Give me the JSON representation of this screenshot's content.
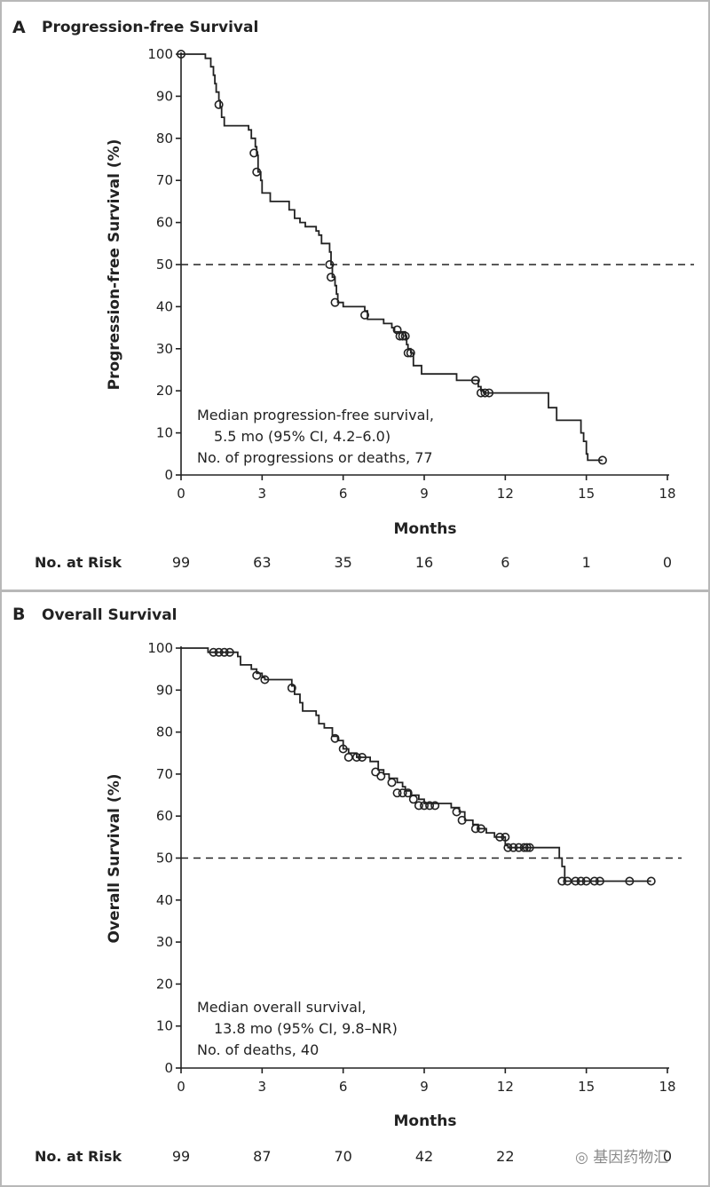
{
  "chart_data": [
    {
      "type": "line",
      "panel_letter": "A",
      "title": "Progression-free Survival",
      "xlabel": "Months",
      "ylabel": "Progression-free Survival (%)",
      "xlim": [
        0,
        18
      ],
      "ylim": [
        0,
        100
      ],
      "x_ticks": [
        0,
        3,
        6,
        9,
        12,
        15,
        18
      ],
      "y_ticks": [
        0,
        10,
        20,
        30,
        40,
        50,
        60,
        70,
        80,
        90,
        100
      ],
      "reference_line": 50,
      "annotation": [
        "Median progression-free survival,",
        "5.5 mo (95% CI, 4.2–6.0)",
        "No. of progressions or deaths, 77"
      ],
      "risk_label": "No. at Risk",
      "risk_times": [
        0,
        3,
        6,
        9,
        12,
        15,
        18
      ],
      "risk_counts": [
        "99",
        "63",
        "35",
        "16",
        "6",
        "1",
        "0"
      ],
      "series": [
        {
          "steps": [
            [
              0,
              100
            ],
            [
              0.9,
              99
            ],
            [
              1.1,
              97
            ],
            [
              1.2,
              95
            ],
            [
              1.25,
              93
            ],
            [
              1.3,
              91
            ],
            [
              1.4,
              89
            ],
            [
              1.45,
              87.5
            ],
            [
              1.5,
              85
            ],
            [
              1.6,
              83
            ],
            [
              2.5,
              82
            ],
            [
              2.6,
              80
            ],
            [
              2.75,
              78
            ],
            [
              2.8,
              76
            ],
            [
              2.85,
              72
            ],
            [
              2.95,
              70
            ],
            [
              3.0,
              67
            ],
            [
              3.3,
              65
            ],
            [
              4.0,
              63
            ],
            [
              4.2,
              61
            ],
            [
              4.4,
              60
            ],
            [
              4.6,
              59
            ],
            [
              5.0,
              58
            ],
            [
              5.1,
              57
            ],
            [
              5.2,
              55
            ],
            [
              5.5,
              53
            ],
            [
              5.55,
              50
            ],
            [
              5.6,
              47
            ],
            [
              5.7,
              45
            ],
            [
              5.75,
              43
            ],
            [
              5.8,
              41
            ],
            [
              6.0,
              40
            ],
            [
              6.8,
              39
            ],
            [
              6.9,
              37
            ],
            [
              7.5,
              36
            ],
            [
              7.8,
              35
            ],
            [
              7.9,
              34
            ],
            [
              8.3,
              33
            ],
            [
              8.35,
              31
            ],
            [
              8.4,
              30
            ],
            [
              8.5,
              29
            ],
            [
              8.6,
              26
            ],
            [
              8.9,
              24
            ],
            [
              10.2,
              22.5
            ],
            [
              11.0,
              21
            ],
            [
              11.1,
              20
            ],
            [
              11.2,
              19.5
            ],
            [
              13.6,
              16
            ],
            [
              13.9,
              13
            ],
            [
              14.8,
              10
            ],
            [
              14.9,
              8
            ],
            [
              15.0,
              5
            ],
            [
              15.05,
              3.5
            ],
            [
              15.6,
              3.5
            ]
          ],
          "censored": [
            [
              0,
              100
            ],
            [
              1.4,
              88
            ],
            [
              2.7,
              76.5
            ],
            [
              2.8,
              72
            ],
            [
              5.5,
              50
            ],
            [
              5.55,
              47
            ],
            [
              5.7,
              41
            ],
            [
              6.8,
              38
            ],
            [
              8.0,
              34.5
            ],
            [
              8.1,
              33
            ],
            [
              8.2,
              33
            ],
            [
              8.3,
              33
            ],
            [
              8.4,
              29
            ],
            [
              8.5,
              29
            ],
            [
              10.9,
              22.5
            ],
            [
              11.1,
              19.5
            ],
            [
              11.25,
              19.5
            ],
            [
              11.4,
              19.5
            ],
            [
              15.6,
              3.5
            ]
          ]
        }
      ]
    },
    {
      "type": "line",
      "panel_letter": "B",
      "title": "Overall Survival",
      "xlabel": "Months",
      "ylabel": "Overall Survival (%)",
      "xlim": [
        0,
        18
      ],
      "ylim": [
        0,
        100
      ],
      "x_ticks": [
        0,
        3,
        6,
        9,
        12,
        15,
        18
      ],
      "y_ticks": [
        0,
        10,
        20,
        30,
        40,
        50,
        60,
        70,
        80,
        90,
        100
      ],
      "reference_line": 50,
      "annotation": [
        "Median overall survival,",
        "13.8 mo (95% CI, 9.8–NR)",
        "No. of deaths, 40"
      ],
      "risk_label": "No. at Risk",
      "risk_times": [
        0,
        3,
        6,
        9,
        12,
        15,
        18
      ],
      "risk_counts": [
        "99",
        "87",
        "70",
        "42",
        "22",
        "",
        "0"
      ],
      "series": [
        {
          "steps": [
            [
              0,
              100
            ],
            [
              1.0,
              99
            ],
            [
              2.1,
              98
            ],
            [
              2.2,
              96
            ],
            [
              2.6,
              95
            ],
            [
              2.8,
              94
            ],
            [
              3.0,
              93
            ],
            [
              3.1,
              92.5
            ],
            [
              4.1,
              91
            ],
            [
              4.2,
              89
            ],
            [
              4.4,
              87
            ],
            [
              4.5,
              85
            ],
            [
              5.0,
              84
            ],
            [
              5.1,
              82
            ],
            [
              5.3,
              81
            ],
            [
              5.6,
              79
            ],
            [
              5.8,
              78
            ],
            [
              6.0,
              76
            ],
            [
              6.2,
              75
            ],
            [
              6.5,
              74
            ],
            [
              7.0,
              73
            ],
            [
              7.3,
              71
            ],
            [
              7.5,
              70
            ],
            [
              7.7,
              69
            ],
            [
              8.0,
              68
            ],
            [
              8.2,
              67
            ],
            [
              8.3,
              66
            ],
            [
              8.5,
              65
            ],
            [
              8.8,
              64
            ],
            [
              9.0,
              63
            ],
            [
              10.0,
              62
            ],
            [
              10.3,
              61
            ],
            [
              10.5,
              59
            ],
            [
              10.8,
              58
            ],
            [
              11.0,
              57
            ],
            [
              11.3,
              56
            ],
            [
              11.6,
              55
            ],
            [
              12.0,
              53
            ],
            [
              12.1,
              52.5
            ],
            [
              14.0,
              50
            ],
            [
              14.1,
              48
            ],
            [
              14.2,
              44.5
            ],
            [
              17.4,
              44.5
            ]
          ],
          "censored": [
            [
              1.2,
              99
            ],
            [
              1.4,
              99
            ],
            [
              1.6,
              99
            ],
            [
              1.8,
              99
            ],
            [
              2.8,
              93.5
            ],
            [
              3.1,
              92.5
            ],
            [
              4.1,
              90.5
            ],
            [
              5.7,
              78.5
            ],
            [
              6.0,
              76
            ],
            [
              6.2,
              74
            ],
            [
              6.5,
              74
            ],
            [
              6.7,
              74
            ],
            [
              7.2,
              70.5
            ],
            [
              7.4,
              69.5
            ],
            [
              7.8,
              68
            ],
            [
              8.0,
              65.5
            ],
            [
              8.2,
              65.5
            ],
            [
              8.4,
              65.5
            ],
            [
              8.6,
              64
            ],
            [
              8.8,
              62.5
            ],
            [
              9.0,
              62.5
            ],
            [
              9.2,
              62.5
            ],
            [
              9.4,
              62.5
            ],
            [
              10.2,
              61
            ],
            [
              10.4,
              59
            ],
            [
              10.9,
              57
            ],
            [
              11.1,
              57
            ],
            [
              11.8,
              55
            ],
            [
              12.0,
              55
            ],
            [
              12.1,
              52.5
            ],
            [
              12.3,
              52.5
            ],
            [
              12.5,
              52.5
            ],
            [
              12.7,
              52.5
            ],
            [
              12.8,
              52.5
            ],
            [
              12.9,
              52.5
            ],
            [
              14.1,
              44.5
            ],
            [
              14.3,
              44.5
            ],
            [
              14.6,
              44.5
            ],
            [
              14.8,
              44.5
            ],
            [
              15.0,
              44.5
            ],
            [
              15.3,
              44.5
            ],
            [
              15.5,
              44.5
            ],
            [
              16.6,
              44.5
            ],
            [
              17.4,
              44.5
            ]
          ]
        }
      ]
    }
  ],
  "watermark": "基因药物汇"
}
